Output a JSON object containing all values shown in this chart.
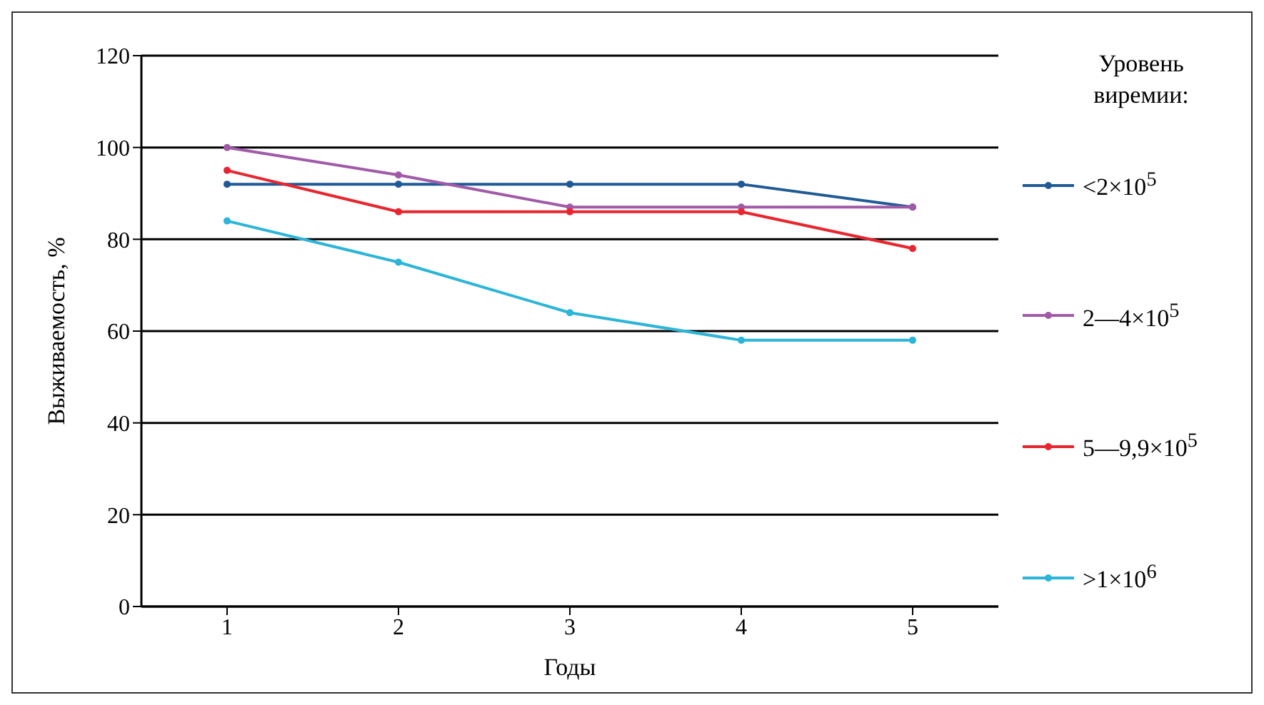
{
  "chart_data": {
    "type": "line",
    "xlabel": "Годы",
    "ylabel": "Выживаемость, %",
    "legend_title": "Уровень виремии:",
    "categories": [
      "1",
      "2",
      "3",
      "4",
      "5"
    ],
    "series": [
      {
        "name": "<2×10$^{5}$",
        "color": "#1f5a96",
        "values": [
          92,
          92,
          92,
          92,
          87
        ]
      },
      {
        "name": "2—4×10$^{5}$",
        "color": "#a05aa8",
        "values": [
          100,
          94,
          87,
          87,
          87
        ]
      },
      {
        "name": "5—9,9×10$^{5}$",
        "color": "#e8262f",
        "values": [
          95,
          86,
          86,
          86,
          78
        ]
      },
      {
        "name": ">1×10$^{6}$",
        "color": "#2cb5d8",
        "values": [
          84,
          75,
          64,
          58,
          58
        ]
      }
    ],
    "ylim": [
      0,
      120
    ],
    "yticks": [
      0,
      20,
      40,
      60,
      80,
      100,
      120
    ],
    "grid": "y",
    "legend": "right",
    "marker": "circle",
    "line_style": "solid"
  }
}
